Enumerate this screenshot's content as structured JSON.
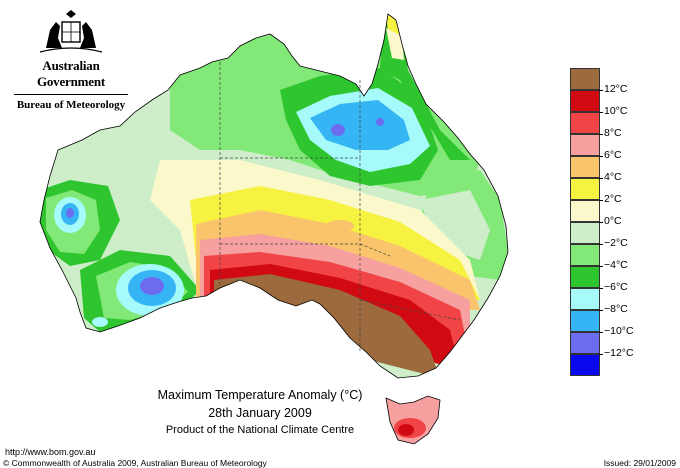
{
  "header": {
    "government": "Australian Government",
    "bureau": "Bureau of Meteorology"
  },
  "map_title": {
    "line1": "Maximum Temperature Anomaly (°C)",
    "line2": "28th January 2009",
    "line3": "Product of the National Climate Centre"
  },
  "footer": {
    "url": "http://www.bom.gov.au",
    "copyright": "© Commonwealth of Australia 2009, Australian Bureau of Meteorology",
    "issued": "Issued: 29/01/2009"
  },
  "legend": {
    "units": "°C",
    "bands": [
      {
        "color": "#9c6a3c"
      },
      {
        "color": "#d10a12"
      },
      {
        "color": "#f04446"
      },
      {
        "color": "#f7a0a0"
      },
      {
        "color": "#f9c46b"
      },
      {
        "color": "#f6f241"
      },
      {
        "color": "#fbf8cc"
      },
      {
        "color": "#cdeec9"
      },
      {
        "color": "#82e878"
      },
      {
        "color": "#2ec52e"
      },
      {
        "color": "#a6fafa"
      },
      {
        "color": "#36b5f4"
      },
      {
        "color": "#6c6cf0"
      },
      {
        "color": "#0909ee"
      }
    ],
    "labels": [
      "12°C",
      "10°C",
      "8°C",
      "6°C",
      "4°C",
      "2°C",
      "0°C",
      "−2°C",
      "−4°C",
      "−6°C",
      "−8°C",
      "−10°C",
      "−12°C"
    ]
  },
  "colors": {
    "sea": "#ffffff",
    "coastline": "#000000",
    "state_borders": "#444444"
  }
}
